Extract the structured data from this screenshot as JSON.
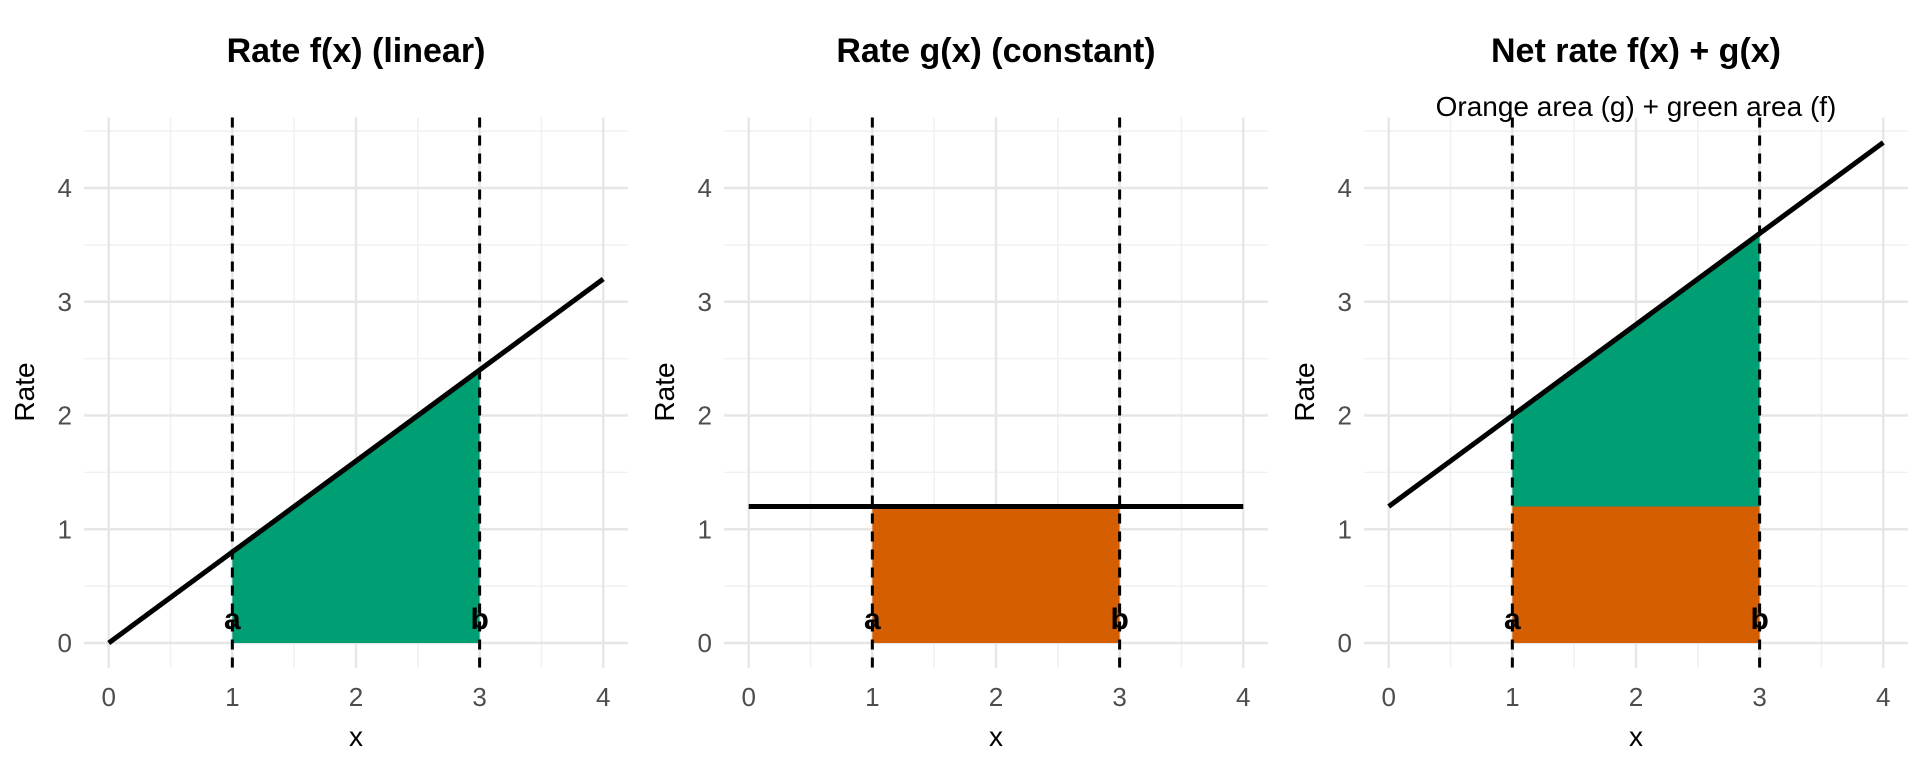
{
  "colors": {
    "area_green": "#009E73",
    "area_orange": "#D55E00",
    "function_line": "#000000",
    "bound_dashed_line": "#000000",
    "grid_major": "#E6E6E6",
    "grid_minor": "#F1F1F1",
    "axis_tick_text": "#4D4D4D",
    "background": "#FFFFFF"
  },
  "chart_data": [
    {
      "type": "area",
      "title": "Rate f(x) (linear)",
      "subtitle": "",
      "xlabel": "x",
      "ylabel": "Rate",
      "xlim": [
        0,
        4
      ],
      "ylim": [
        0,
        4.4
      ],
      "grid": "major and minor, light gray, no axis lines",
      "legend": "none",
      "x_ticks": [
        0,
        1,
        2,
        3,
        4
      ],
      "y_ticks": [
        0,
        1,
        2,
        3,
        4
      ],
      "line": {
        "x": [
          0,
          4
        ],
        "y": [
          0,
          3.2
        ]
      },
      "areas": [
        {
          "color_key": "area_green",
          "polygon": [
            [
              1,
              0
            ],
            [
              1,
              0.8
            ],
            [
              3,
              2.4
            ],
            [
              3,
              0
            ]
          ]
        }
      ],
      "vlines": [
        {
          "x": 1,
          "label": "a"
        },
        {
          "x": 3,
          "label": "b"
        }
      ]
    },
    {
      "type": "area",
      "title": "Rate g(x) (constant)",
      "subtitle": "",
      "xlabel": "x",
      "ylabel": "Rate",
      "xlim": [
        0,
        4
      ],
      "ylim": [
        0,
        4.4
      ],
      "grid": "major and minor, light gray, no axis lines",
      "legend": "none",
      "x_ticks": [
        0,
        1,
        2,
        3,
        4
      ],
      "y_ticks": [
        0,
        1,
        2,
        3,
        4
      ],
      "line": {
        "x": [
          0,
          4
        ],
        "y": [
          1.2,
          1.2
        ]
      },
      "areas": [
        {
          "color_key": "area_orange",
          "polygon": [
            [
              1,
              0
            ],
            [
              1,
              1.2
            ],
            [
              3,
              1.2
            ],
            [
              3,
              0
            ]
          ]
        }
      ],
      "vlines": [
        {
          "x": 1,
          "label": "a"
        },
        {
          "x": 3,
          "label": "b"
        }
      ]
    },
    {
      "type": "area",
      "title": "Net rate f(x) + g(x)",
      "subtitle": "Orange area (g) + green area (f)",
      "xlabel": "x",
      "ylabel": "Rate",
      "xlim": [
        0,
        4
      ],
      "ylim": [
        0,
        4.4
      ],
      "grid": "major and minor, light gray, no axis lines",
      "legend": "none",
      "x_ticks": [
        0,
        1,
        2,
        3,
        4
      ],
      "y_ticks": [
        0,
        1,
        2,
        3,
        4
      ],
      "line": {
        "x": [
          0,
          4
        ],
        "y": [
          1.2,
          4.4
        ]
      },
      "areas": [
        {
          "color_key": "area_orange",
          "polygon": [
            [
              1,
              0
            ],
            [
              1,
              1.2
            ],
            [
              3,
              1.2
            ],
            [
              3,
              0
            ]
          ]
        },
        {
          "color_key": "area_green",
          "polygon": [
            [
              1,
              1.2
            ],
            [
              1,
              2.0
            ],
            [
              3,
              3.6
            ],
            [
              3,
              1.2
            ]
          ]
        }
      ],
      "vlines": [
        {
          "x": 1,
          "label": "a"
        },
        {
          "x": 3,
          "label": "b"
        }
      ]
    }
  ]
}
